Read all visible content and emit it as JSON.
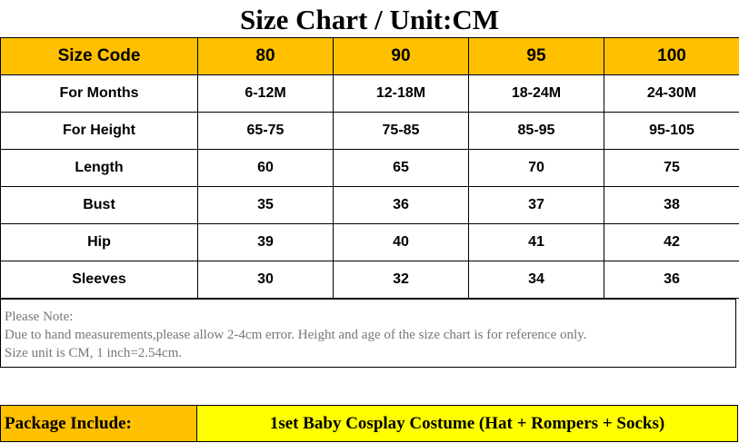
{
  "title": "Size Chart / Unit:CM",
  "table": {
    "header": [
      "Size Code",
      "80",
      "90",
      "95",
      "100"
    ],
    "rows": [
      [
        "For Months",
        "6-12M",
        "12-18M",
        "18-24M",
        "24-30M"
      ],
      [
        "For Height",
        "65-75",
        "75-85",
        "85-95",
        "95-105"
      ],
      [
        "Length",
        "60",
        "65",
        "70",
        "75"
      ],
      [
        "Bust",
        "35",
        "36",
        "37",
        "38"
      ],
      [
        "Hip",
        "39",
        "40",
        "41",
        "42"
      ],
      [
        "Sleeves",
        "30",
        "32",
        "34",
        "36"
      ]
    ]
  },
  "note": {
    "lines": [
      "Please Note:",
      "Due to hand measurements,please allow 2-4cm error. Height and age of the size chart is for reference only.",
      "Size unit is CM, 1 inch=2.54cm."
    ]
  },
  "package": {
    "label": "Package Include:",
    "value": "1set Baby Cosplay Costume (Hat + Rompers + Socks)"
  },
  "colors": {
    "header": "#FFC000",
    "package_label": "#FFC000",
    "package_value": "#FFFF00"
  }
}
